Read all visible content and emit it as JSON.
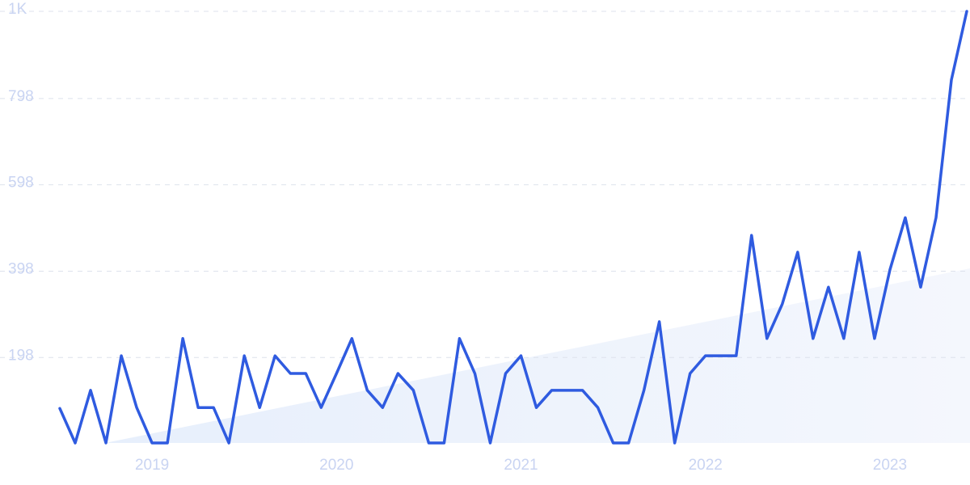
{
  "chart_data": {
    "type": "line",
    "categories": [
      null,
      null,
      null,
      null,
      null,
      null,
      "2019",
      null,
      null,
      null,
      null,
      null,
      null,
      null,
      null,
      null,
      null,
      null,
      "2020",
      null,
      null,
      null,
      null,
      null,
      null,
      null,
      null,
      null,
      null,
      null,
      "2021",
      null,
      null,
      null,
      null,
      null,
      null,
      null,
      null,
      null,
      null,
      null,
      "2022",
      null,
      null,
      null,
      null,
      null,
      null,
      null,
      null,
      null,
      null,
      null,
      "2023",
      null,
      null,
      null,
      null,
      null
    ],
    "series": [
      {
        "color": "#2f5be0",
        "values": [
          80,
          0,
          122,
          0,
          202,
          82,
          0,
          0,
          242,
          82,
          82,
          0,
          202,
          82,
          202,
          161,
          161,
          82,
          161,
          242,
          122,
          82,
          161,
          122,
          0,
          0,
          242,
          161,
          0,
          161,
          202,
          82,
          122,
          122,
          122,
          82,
          0,
          0,
          122,
          281,
          0,
          161,
          202,
          202,
          202,
          481,
          242,
          322,
          442,
          242,
          361,
          242,
          442,
          242,
          401,
          522,
          361,
          522,
          841,
          1000
        ]
      }
    ],
    "ylim": [
      0,
      1000
    ],
    "yticks": [
      198,
      398,
      598,
      798,
      {
        "value": 1000,
        "label": "1K"
      }
    ],
    "grid": true
  }
}
